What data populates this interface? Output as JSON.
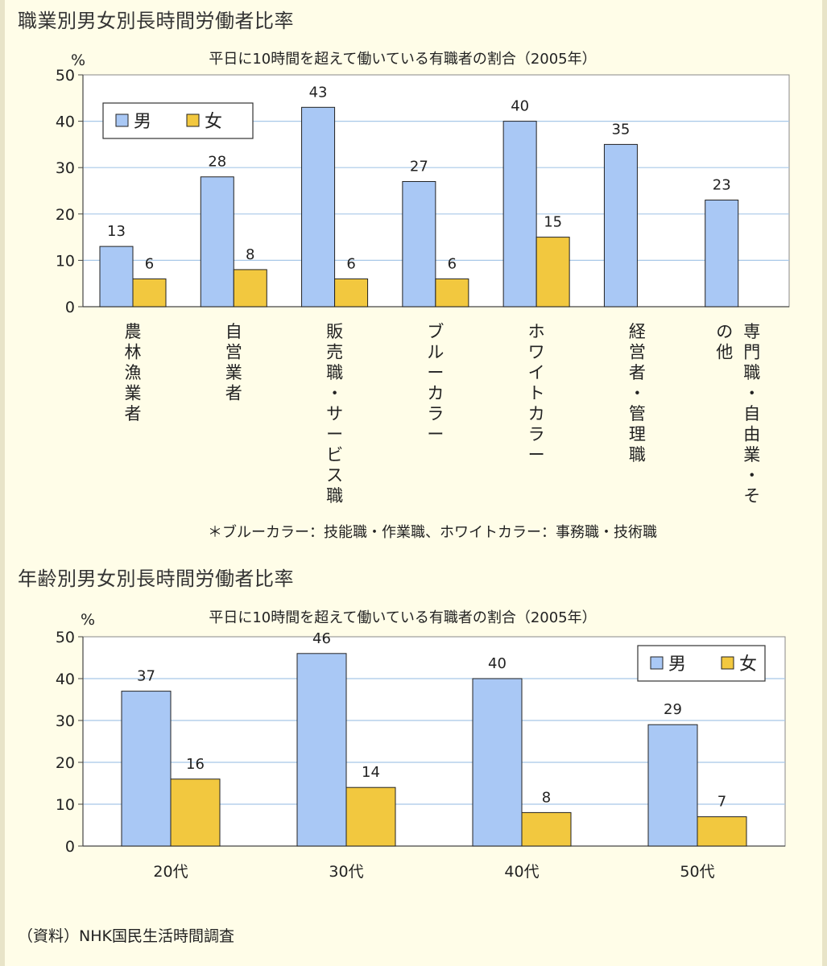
{
  "page": {
    "source": "（資料）NHK国民生活時間調査"
  },
  "colors": {
    "male": "#a9c8f5",
    "female": "#f2c83f",
    "grid": "#a8c8e8",
    "bar_outline": "#222222"
  },
  "chart_data": [
    {
      "type": "bar",
      "section_title": "職業別男女別長時間労働者比率",
      "title": "平日に10時間を超えて働いている有職者の割合（2005年）",
      "ylabel": "%",
      "ylim": [
        0,
        50
      ],
      "yticks": [
        0,
        10,
        20,
        30,
        40,
        50
      ],
      "grid": true,
      "legend_position": "top-left",
      "categories": [
        "農林漁業者",
        "自営業者",
        "販売職・サービス職",
        "ブルーカラー",
        "ホワイトカラー",
        "経営者・管理職",
        "専門職・自由業・その他"
      ],
      "series": [
        {
          "name": "男",
          "values": [
            13,
            28,
            43,
            27,
            40,
            35,
            23
          ]
        },
        {
          "name": "女",
          "values": [
            6,
            8,
            6,
            6,
            15,
            null,
            null
          ]
        }
      ],
      "footnote": "＊ブルーカラー：技能職・作業職、ホワイトカラー：事務職・技術職"
    },
    {
      "type": "bar",
      "section_title": "年齢別男女別長時間労働者比率",
      "title": "平日に10時間を超えて働いている有職者の割合（2005年）",
      "ylabel": "%",
      "ylim": [
        0,
        50
      ],
      "yticks": [
        0,
        10,
        20,
        30,
        40,
        50
      ],
      "grid": true,
      "legend_position": "top-right",
      "categories": [
        "20代",
        "30代",
        "40代",
        "50代"
      ],
      "series": [
        {
          "name": "男",
          "values": [
            37,
            46,
            40,
            29
          ]
        },
        {
          "name": "女",
          "values": [
            16,
            14,
            8,
            7
          ]
        }
      ]
    }
  ]
}
